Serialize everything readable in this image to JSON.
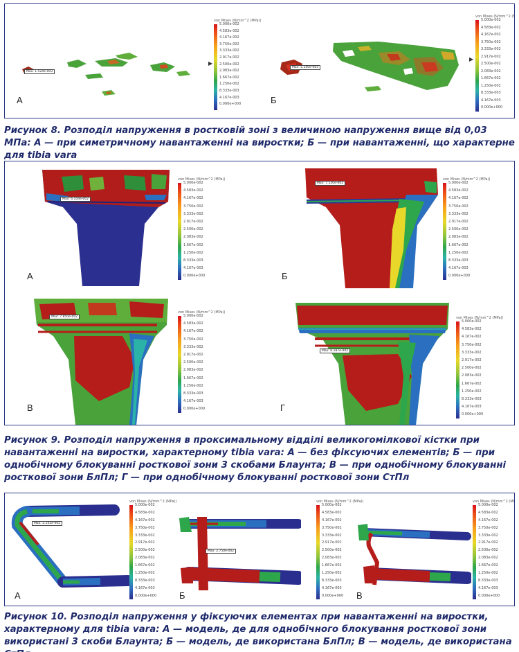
{
  "legend": {
    "title": "von Mises (N/mm^2 (MPa))",
    "ticks": [
      "5.000e-002",
      "4.583e-002",
      "4.167e-002",
      "3.750e-002",
      "3.333e-002",
      "2.917e-002",
      "2.500e-002",
      "2.083e-002",
      "1.667e-002",
      "1.250e-002",
      "8.333e-003",
      "4.167e-003",
      "0.000e+000"
    ]
  },
  "figure8": {
    "caption": "Рисунок 8. Розподіл напруження в ростковій зоні з величиною напруження вище від 0,03 МПа: А — при симетричному навантаженні на виростки; Б — при навантаженні, що характерне для tibia vara",
    "panels": [
      {
        "letter": "А",
        "probe": "Max: 1.524e-003"
      },
      {
        "letter": "Б",
        "probe": "Max: 5.140e-003"
      }
    ]
  },
  "figure9": {
    "caption": "Рисунок 9. Розподіл напруження в проксимальному відділі великогомілкової кістки при навантаженні на виростки, характерному tibia vara: А — без фіксуючих елементів; Б — при однобічному блокуванні росткової зони 3 скобами Блаунта; В — при однобічному блокуванні росткової зони БлПл; Г — при однобічному блокуванні росткової зони СтПл",
    "panels": [
      {
        "letter": "А",
        "probe": "Max: 6.104e-002"
      },
      {
        "letter": "Б",
        "probe": "Max: 7.120e-002"
      },
      {
        "letter": "В",
        "probe": "Max: 7.850e-002"
      },
      {
        "letter": "Г",
        "probe": "Max: 6.187e-002"
      }
    ]
  },
  "figure10": {
    "caption": "Рисунок 10. Розподіл напруження у фіксуючих елементах при навантаженні на виростки, характерному для tibia vara: А — модель, де для однобічного блокування росткової зони використані 3 скоби Блаунта; Б — модель, де використана БлПл; В — модель, де використана СтПл",
    "panels": [
      {
        "letter": "А",
        "probe": "Max: 2.143e-002"
      },
      {
        "letter": "Б",
        "probe": "Max: 2.750e-002"
      },
      {
        "letter": "В",
        "probe": ""
      }
    ]
  }
}
